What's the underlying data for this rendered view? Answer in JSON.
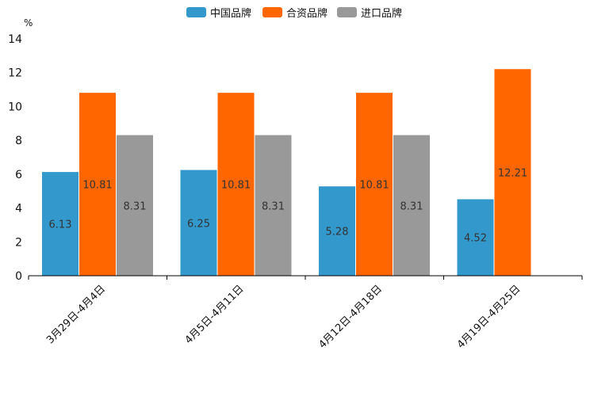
{
  "chart_data": {
    "type": "bar",
    "title": "",
    "xlabel": "",
    "ylabel": "%",
    "ylim": [
      0,
      14
    ],
    "yticks": [
      0,
      2,
      4,
      6,
      8,
      10,
      12,
      14
    ],
    "grid": false,
    "legend_position": "top-center",
    "categories": [
      "3月29日-4月4日",
      "4月5日-4月11日",
      "4月12日-4月18日",
      "4月19日-4月25日"
    ],
    "series": [
      {
        "name": "中国品牌",
        "color": "#3399cc",
        "values": [
          6.13,
          6.25,
          5.28,
          4.52
        ],
        "labels": [
          "6.13",
          "6.25",
          "5.28",
          "4.52"
        ]
      },
      {
        "name": "合资品牌",
        "color": "#ff6600",
        "values": [
          10.81,
          10.81,
          10.81,
          12.21
        ],
        "labels": [
          "10.81",
          "10.81",
          "10.81",
          "12.21"
        ]
      },
      {
        "name": "进口品牌",
        "color": "#999999",
        "values": [
          8.31,
          8.31,
          8.31,
          null
        ],
        "labels": [
          "8.31",
          "8.31",
          "8.31",
          null
        ]
      }
    ]
  }
}
